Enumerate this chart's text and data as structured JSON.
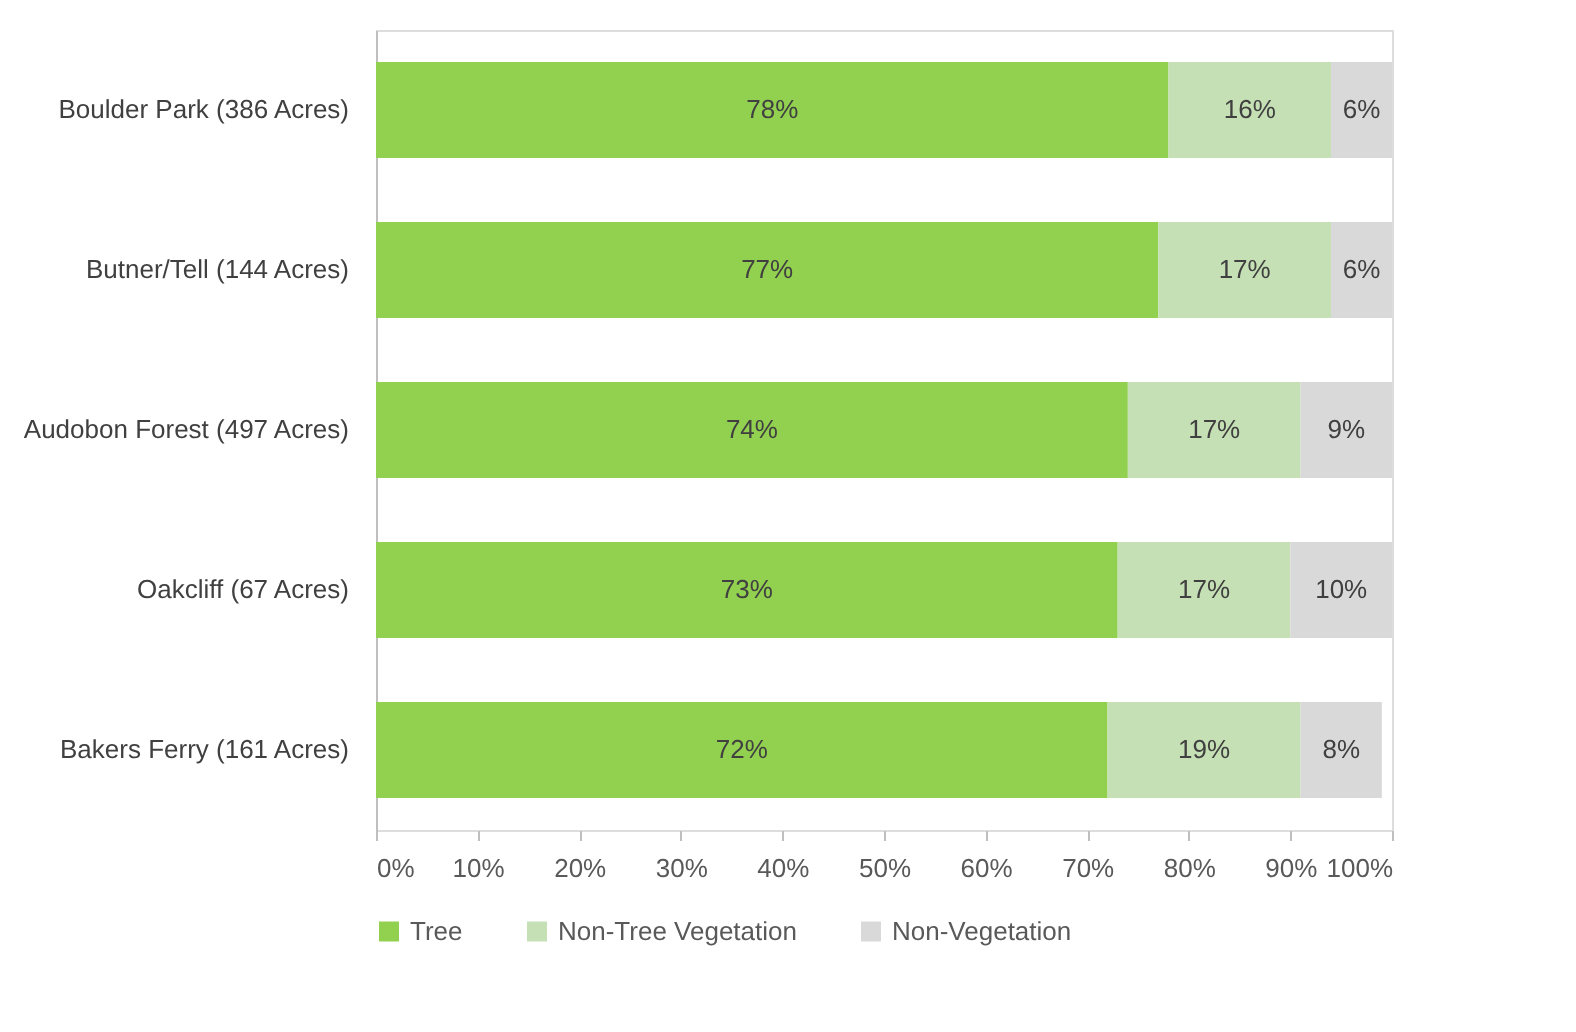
{
  "chart_data": {
    "type": "bar",
    "orientation": "horizontal",
    "stacked": true,
    "categories": [
      "Boulder Park (386 Acres)",
      "Butner/Tell (144 Acres)",
      "Audobon Forest (497 Acres)",
      "Oakcliff (67 Acres)",
      "Bakers Ferry (161 Acres)"
    ],
    "series": [
      {
        "name": "Tree",
        "color": "#92d050",
        "values": [
          78,
          77,
          74,
          73,
          72
        ],
        "value_labels": [
          "78%",
          "77%",
          "74%",
          "73%",
          "72%"
        ]
      },
      {
        "name": "Non-Tree Vegetation",
        "color": "#c5e0b4",
        "values": [
          16,
          17,
          17,
          17,
          19
        ],
        "value_labels": [
          "16%",
          "17%",
          "17%",
          "17%",
          "19%"
        ]
      },
      {
        "name": "Non-Vegetation",
        "color": "#d9d9d9",
        "values": [
          6,
          6,
          9,
          10,
          8
        ],
        "value_labels": [
          "6%",
          "6%",
          "9%",
          "10%",
          "8%"
        ]
      }
    ],
    "xlim": [
      0,
      100
    ],
    "xticks": [
      {
        "value": 0,
        "label": "0%"
      },
      {
        "value": 10,
        "label": "10%"
      },
      {
        "value": 20,
        "label": "20%"
      },
      {
        "value": 30,
        "label": "30%"
      },
      {
        "value": 40,
        "label": "40%"
      },
      {
        "value": 50,
        "label": "50%"
      },
      {
        "value": 60,
        "label": "60%"
      },
      {
        "value": 70,
        "label": "70%"
      },
      {
        "value": 80,
        "label": "80%"
      },
      {
        "value": 90,
        "label": "90%"
      },
      {
        "value": 100,
        "label": "100%"
      }
    ],
    "grid": false,
    "legend": "bottom"
  }
}
